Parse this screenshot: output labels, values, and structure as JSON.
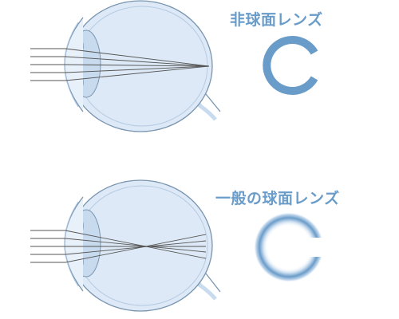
{
  "labels": {
    "aspheric_lens": "非球面レンズ",
    "spherical_lens": "一般の球面レンズ"
  },
  "colors": {
    "accent": "#6a9cc9",
    "eye_fill": "#dde9f6",
    "eye_outline": "#7a95b0",
    "ray": "#555555",
    "lens_fill": "#c8dbee",
    "ring_soft": "#a8c6e4"
  },
  "icons": {
    "top_eye": "eye-cross-section-icon",
    "bottom_eye": "eye-cross-section-icon",
    "top_lens": "sharp-c-ring-icon",
    "bottom_lens": "blurred-c-ring-icon"
  }
}
